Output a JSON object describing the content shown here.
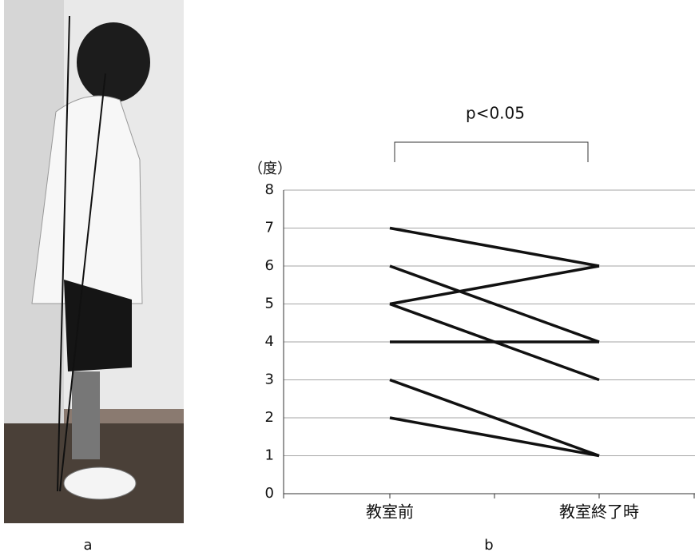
{
  "chart_data": {
    "type": "line",
    "y_label": "（度）",
    "annotation": "p<0.05",
    "categories": [
      "教室前",
      "教室終了時"
    ],
    "series": [
      {
        "color": "#111111",
        "values": [
          7,
          6
        ]
      },
      {
        "color": "#111111",
        "values": [
          6,
          4
        ]
      },
      {
        "color": "#111111",
        "values": [
          5,
          6
        ]
      },
      {
        "color": "#111111",
        "values": [
          5,
          3
        ]
      },
      {
        "color": "#111111",
        "values": [
          4,
          4
        ]
      },
      {
        "color": "#111111",
        "values": [
          3,
          1
        ]
      },
      {
        "color": "#111111",
        "values": [
          2,
          1
        ]
      }
    ],
    "ylim": [
      0,
      8
    ],
    "yticks": [
      0,
      1,
      2,
      3,
      4,
      5,
      6,
      7,
      8
    ],
    "grid": true
  },
  "panel_labels": [
    "a",
    "b"
  ]
}
